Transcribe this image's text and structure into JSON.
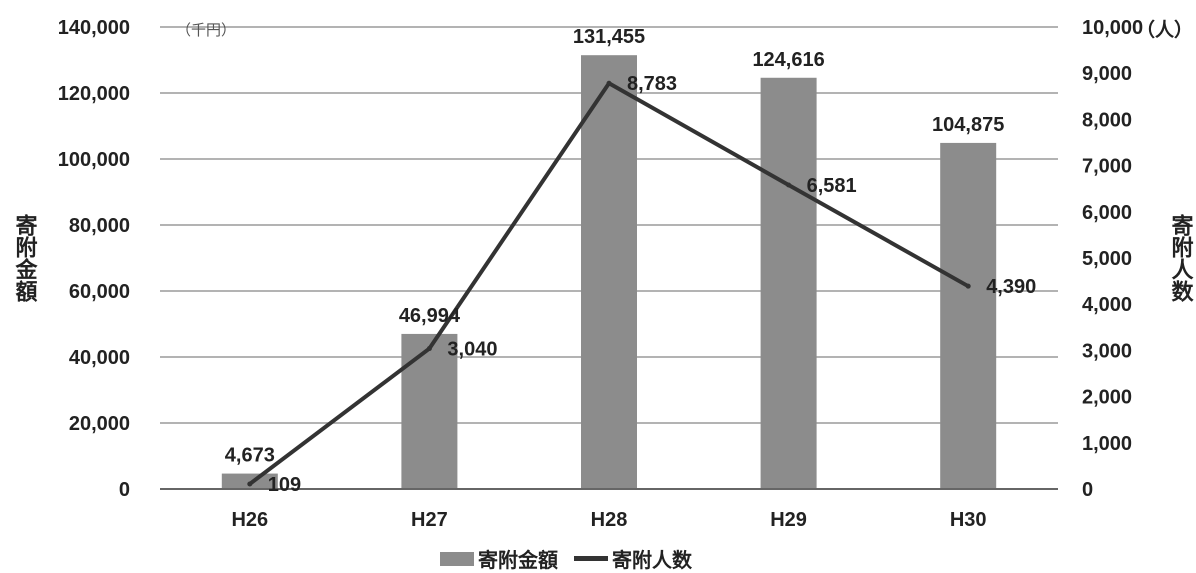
{
  "chart_data": {
    "type": "bar",
    "categories": [
      "H26",
      "H27",
      "H28",
      "H29",
      "H30"
    ],
    "series": [
      {
        "name": "寄附金額",
        "kind": "bar",
        "axis": "left",
        "values": [
          4673,
          46994,
          131455,
          124616,
          104875
        ],
        "labels": [
          "4,673",
          "46,994",
          "131,455",
          "124,616",
          "104,875"
        ],
        "color": "#8c8c8c"
      },
      {
        "name": "寄附人数",
        "kind": "line",
        "axis": "right",
        "values": [
          109,
          3040,
          8783,
          6581,
          4390
        ],
        "labels": [
          "109",
          "3,040",
          "8,783",
          "6,581",
          "4,390"
        ],
        "color": "#333333"
      }
    ],
    "y_left": {
      "label": "寄附金額",
      "unit": "（千円）",
      "ylim": [
        0,
        140000
      ],
      "ticks": [
        "0",
        "20,000",
        "40,000",
        "60,000",
        "80,000",
        "100,000",
        "120,000",
        "140,000"
      ]
    },
    "y_right": {
      "label": "寄附人数",
      "unit": "（人）",
      "ylim": [
        0,
        10000
      ],
      "ticks": [
        "0",
        "1,000",
        "2,000",
        "3,000",
        "4,000",
        "5,000",
        "6,000",
        "7,000",
        "8,000",
        "9,000",
        "10,000"
      ]
    },
    "grid": true,
    "legend_position": "bottom-center"
  },
  "legend": {
    "bar_label": "寄附金額",
    "line_label": "寄附人数"
  }
}
